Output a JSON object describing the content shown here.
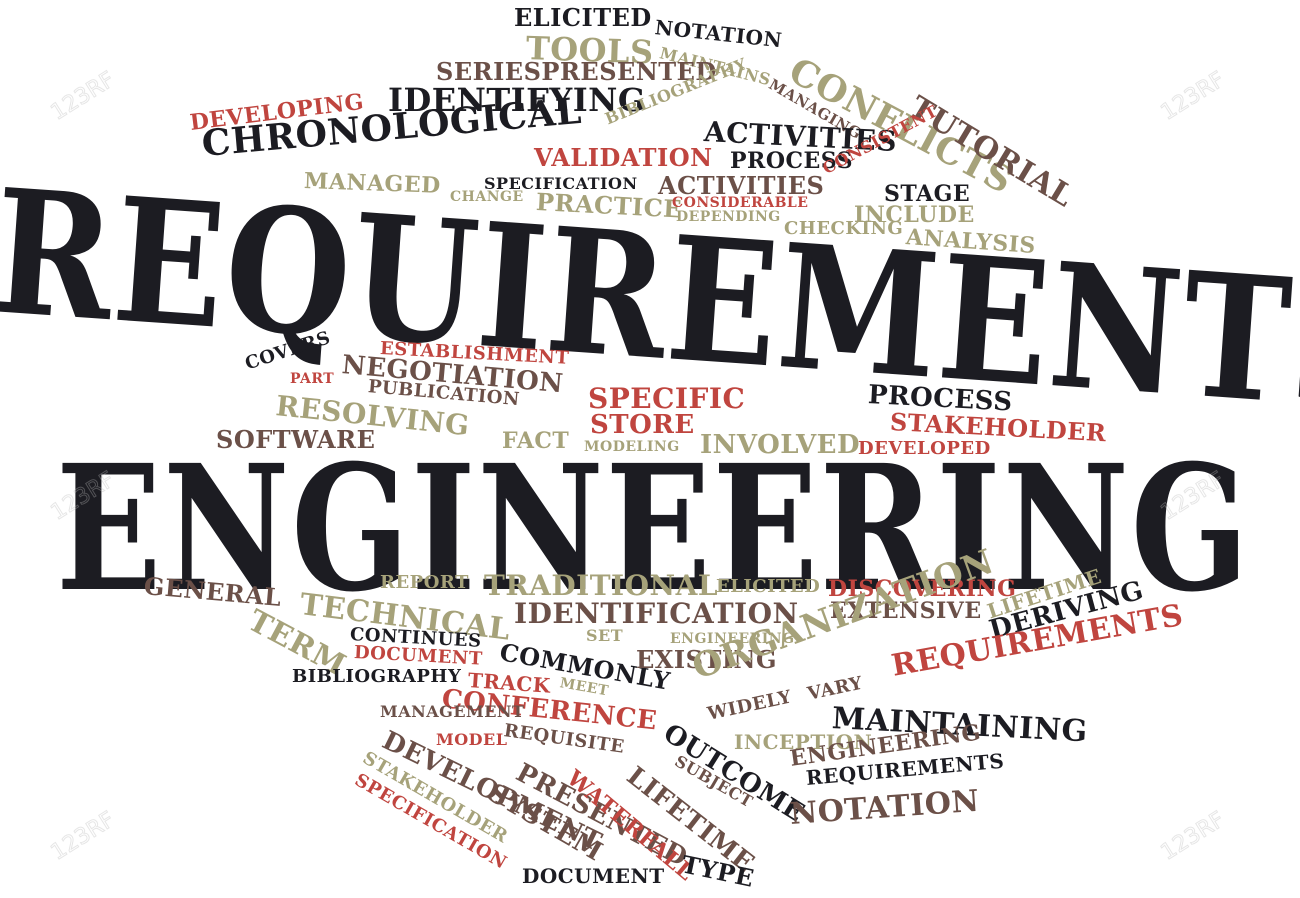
{
  "colors": {
    "dark": "#1c1c22",
    "brown": "#6b5048",
    "red": "#c0453f",
    "khaki": "#a6a27a"
  },
  "watermark": {
    "text": "123RF"
  },
  "big_words": {
    "requirements": "REQUIREMENTS",
    "engineering": "ENGINEERING"
  },
  "words": [
    "ELICITED",
    "NOTATION",
    "TOOLS",
    "MAINTAINS",
    "CONFLICTS",
    "MANAGING",
    "SERIESPRESENTED",
    "TUTORIAL",
    "IDENTIFYING",
    "BIBLIOGRAPHY",
    "DEVELOPING",
    "ACTIVITIES",
    "CHRONOLOGICAL",
    "VALIDATION",
    "PROCESS",
    "CONSISTENT",
    "SPECIFICATION",
    "ACTIVITIES",
    "MANAGED",
    "CHANGE",
    "PRACTICE",
    "CONSIDERABLE",
    "STAGE",
    "DEPENDING",
    "INCLUDE",
    "CHECKING",
    "ANALYSIS",
    "ESTABLISHMENT",
    "COVERS",
    "PART",
    "NEGOTIATION",
    "PUBLICATION",
    "SPECIFIC",
    "PROCESS",
    "RESOLVING",
    "STORE",
    "STAKEHOLDER",
    "SOFTWARE",
    "FACT",
    "MODELING",
    "INVOLVED",
    "DEVELOPED",
    "GENERAL",
    "REPORT",
    "TRADITIONAL",
    "ELICITED",
    "DISCOVERING",
    "TECHNICAL",
    "IDENTIFICATION",
    "EXTENSIVE",
    "LIFETIME",
    "TERM",
    "CONTINUES",
    "SET",
    "ENGINEERING",
    "DERIVING",
    "DOCUMENT",
    "COMMONLY",
    "EXISTING",
    "ORGANIZATION",
    "REQUIREMENTS",
    "BIBLIOGRAPHY",
    "TRACK",
    "MEET",
    "CONFERENCE",
    "VARY",
    "WIDELY",
    "MANAGEMENT",
    "REQUISITE",
    "OUTCOME",
    "MAINTAINING",
    "INCEPTION",
    "MODEL",
    "SUBJECT",
    "DEVELOPMENT",
    "PRESENTED",
    "WATERFALL",
    "LIFETIME",
    "ENGINEERING",
    "STAKEHOLDER",
    "SYSTEM",
    "REQUIREMENTS",
    "SPECIFICATION",
    "NOTATION",
    "TYPE",
    "DOCUMENT"
  ]
}
